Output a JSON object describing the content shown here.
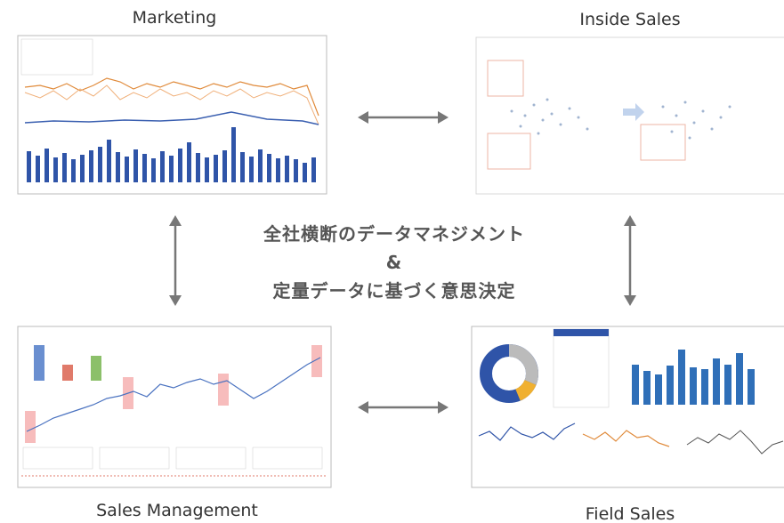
{
  "nodes": [
    {
      "label": "Marketing"
    },
    {
      "label": "Inside Sales"
    },
    {
      "label": "Sales Management"
    },
    {
      "label": "Field Sales"
    }
  ],
  "center": {
    "lines": [
      "全社横断のデータマネジメント",
      "&",
      "定量データに基づく意思決定"
    ]
  }
}
